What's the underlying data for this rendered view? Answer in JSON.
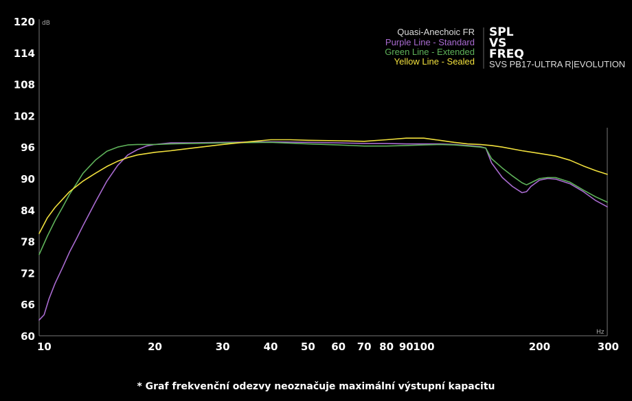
{
  "chart_data": {
    "type": "line",
    "x_scale": "log",
    "xlim": [
      10,
      300
    ],
    "ylim": [
      60,
      120
    ],
    "y_ticks": [
      60,
      66,
      72,
      78,
      84,
      90,
      96,
      102,
      108,
      114,
      120
    ],
    "x_ticks": [
      10,
      20,
      30,
      40,
      50,
      60,
      70,
      80,
      90,
      100,
      200,
      300
    ],
    "x_tick_labels": [
      "10",
      "20",
      "30",
      "40",
      "50",
      "60",
      "70",
      "80",
      "90",
      "100",
      "200",
      "300"
    ],
    "y_unit": "dB",
    "x_unit": "Hz",
    "title_lines": [
      "SPL",
      "VS",
      "FREQ"
    ],
    "subtitle": "SVS PB17-ULTRA R|EVOLUTION",
    "legend_heading": "Quasi-Anechoic FR",
    "series": [
      {
        "name": "Purple Line - Standard",
        "color": "#a96bd1",
        "x": [
          10,
          10.3,
          10.6,
          11,
          11.5,
          12,
          12.5,
          13,
          14,
          15,
          16,
          17,
          18,
          19,
          20,
          22,
          25,
          30,
          40,
          50,
          60,
          70,
          80,
          90,
          100,
          110,
          120,
          130,
          140,
          145,
          150,
          160,
          170,
          180,
          185,
          190,
          200,
          210,
          220,
          240,
          260,
          280,
          300
        ],
        "values": [
          63,
          64,
          67,
          70,
          73,
          76,
          78.5,
          81,
          85.5,
          89.5,
          92.5,
          94.5,
          95.5,
          96.2,
          96.5,
          96.8,
          96.8,
          96.9,
          97,
          96.9,
          96.8,
          96.7,
          96.7,
          96.6,
          96.6,
          96.6,
          96.5,
          96.3,
          96.1,
          95.8,
          93,
          90.2,
          88.5,
          87.3,
          87.5,
          88.5,
          89.7,
          90,
          89.9,
          89,
          87.5,
          85.8,
          84.6
        ]
      },
      {
        "name": "Green Line - Extended",
        "color": "#5fb35a",
        "x": [
          10,
          10.5,
          11,
          11.5,
          12,
          12.5,
          13,
          14,
          15,
          16,
          17,
          18,
          19,
          20,
          22,
          25,
          30,
          40,
          50,
          60,
          70,
          80,
          90,
          100,
          110,
          120,
          130,
          140,
          145,
          150,
          160,
          170,
          180,
          185,
          190,
          200,
          210,
          220,
          240,
          260,
          280,
          300
        ],
        "values": [
          75.5,
          79,
          82,
          84.5,
          87,
          89,
          91,
          93.5,
          95.2,
          96,
          96.4,
          96.5,
          96.5,
          96.5,
          96.6,
          96.7,
          96.8,
          96.9,
          96.6,
          96.4,
          96.2,
          96.2,
          96.3,
          96.4,
          96.5,
          96.4,
          96.2,
          96,
          95.8,
          93.8,
          92,
          90.5,
          89.2,
          88.8,
          89.2,
          90,
          90.2,
          90.2,
          89.3,
          87.8,
          86.5,
          85.5
        ]
      },
      {
        "name": "Yellow Line - Sealed",
        "color": "#f2e13d",
        "x": [
          10,
          10.5,
          11,
          12,
          13,
          14,
          15,
          16,
          17,
          18,
          20,
          22,
          25,
          30,
          35,
          40,
          45,
          50,
          60,
          70,
          80,
          90,
          100,
          110,
          120,
          130,
          140,
          150,
          160,
          180,
          200,
          220,
          240,
          260,
          280,
          300
        ],
        "values": [
          79.5,
          82.5,
          84.5,
          87.5,
          89.5,
          91,
          92.3,
          93.3,
          94,
          94.5,
          95,
          95.3,
          95.8,
          96.5,
          97,
          97.4,
          97.4,
          97.3,
          97.2,
          97.1,
          97.4,
          97.7,
          97.7,
          97.3,
          96.9,
          96.6,
          96.5,
          96.3,
          96,
          95.3,
          94.8,
          94.3,
          93.5,
          92.4,
          91.5,
          90.8
        ]
      }
    ]
  },
  "footnote": "* Graf frekvenční odezvy neoznačuje maximální výstupní kapacitu"
}
